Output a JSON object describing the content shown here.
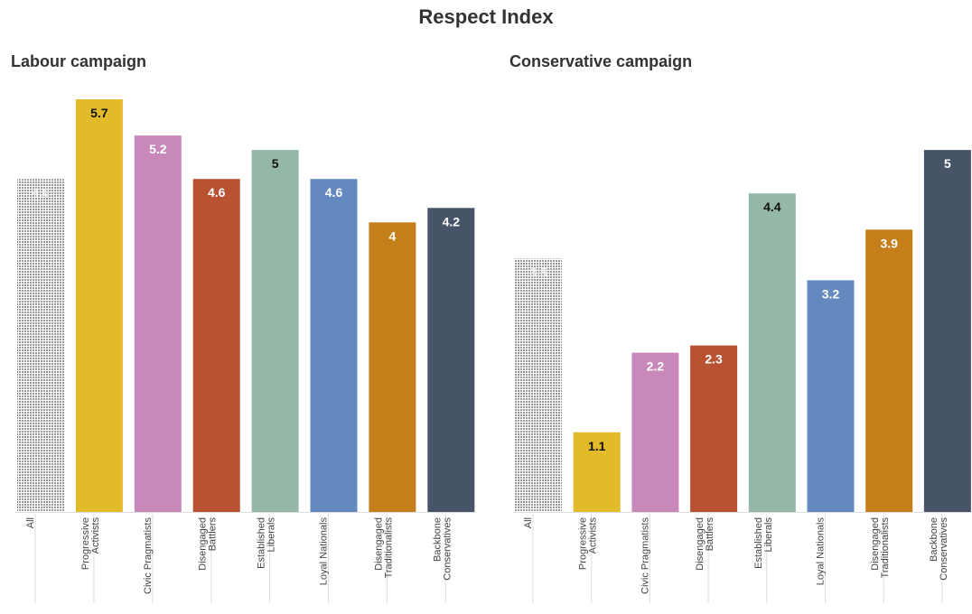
{
  "title": "Respect Index",
  "colors": {
    "all": "#9a9a9a",
    "progressive_activists": "#e2ba2a",
    "civic_pragmatists": "#c888ba",
    "disengaged_battlers": "#b95232",
    "established_liberals": "#95b7a7",
    "loyal_nationals": "#6389bf",
    "disengaged_traditionalists": "#c47f1b",
    "backbone_conservatives": "#475468",
    "axis": "#dddddd"
  },
  "chart_data": [
    {
      "type": "bar",
      "title": "Labour campaign",
      "categories": [
        "All",
        "Progressive Activists",
        "Civic Pragmatists",
        "Disengaged Battlers",
        "Established Liberals",
        "Loyal Nationals",
        "Disengaged Traditionalists",
        "Backbone Conservatives"
      ],
      "category_lines": [
        [
          "All"
        ],
        [
          "Progressive",
          "Activists"
        ],
        [
          "Civic Pragmatists"
        ],
        [
          "Disengaged",
          "Battlers"
        ],
        [
          "Established",
          "Liberals"
        ],
        [
          "Loyal Nationals"
        ],
        [
          "Disengaged",
          "Traditionalists"
        ],
        [
          "Backbone",
          "Conservatives"
        ]
      ],
      "values": [
        4.6,
        5.7,
        5.2,
        4.6,
        5,
        4.6,
        4,
        4.2
      ],
      "value_labels": [
        "4.6",
        "5.7",
        "5.2",
        "4.6",
        "5",
        "4.6",
        "4",
        "4.2"
      ],
      "ylim": [
        0,
        5.7
      ],
      "grid": false,
      "legend": "none"
    },
    {
      "type": "bar",
      "title": "Conservative campaign",
      "categories": [
        "All",
        "Progressive Activists",
        "Civic Pragmatists",
        "Disengaged Battlers",
        "Established Liberals",
        "Loyal Nationals",
        "Disengaged Traditionalists",
        "Backbone Conservatives"
      ],
      "category_lines": [
        [
          "All"
        ],
        [
          "Progressive",
          "Activists"
        ],
        [
          "Civic Pragmatists"
        ],
        [
          "Disengaged",
          "Battlers"
        ],
        [
          "Established",
          "Liberals"
        ],
        [
          "Loyal Nationals"
        ],
        [
          "Disengaged",
          "Traditionalists"
        ],
        [
          "Backbone",
          "Conservatives"
        ]
      ],
      "values": [
        3.5,
        1.1,
        2.2,
        2.3,
        4.4,
        3.2,
        3.9,
        5
      ],
      "value_labels": [
        "3.5",
        "1.1",
        "2.2",
        "2.3",
        "4.4",
        "3.2",
        "3.9",
        "5"
      ],
      "ylim": [
        0,
        5.7
      ],
      "grid": false,
      "legend": "none"
    }
  ]
}
